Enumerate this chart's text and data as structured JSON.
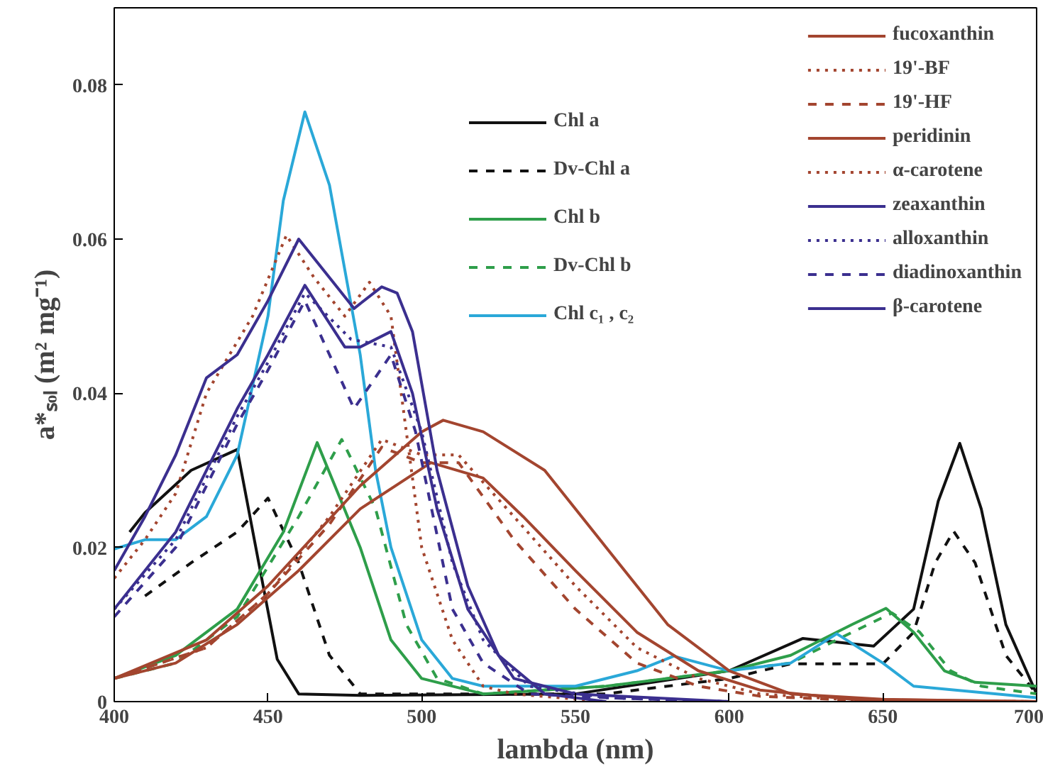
{
  "chart_data": {
    "type": "line",
    "xlabel": "lambda (nm)",
    "ylabel": "a*ₛₒₗ (m² mg⁻¹)",
    "xlim": [
      400,
      700
    ],
    "ylim": [
      0,
      0.09
    ],
    "xticks": [
      400,
      450,
      500,
      550,
      600,
      650,
      700
    ],
    "yticks": [
      0,
      0.02,
      0.04,
      0.06,
      0.08
    ],
    "grid": false,
    "legend": "top right",
    "marker": "none",
    "series": [
      {
        "name": "Chl a",
        "color": "#111111",
        "line_style": "solid",
        "x": [
          405,
          410,
          425,
          440,
          447,
          453,
          460,
          480,
          550,
          600,
          624,
          647,
          660,
          668,
          675,
          682,
          690,
          700
        ],
        "values": [
          0.022,
          0.0245,
          0.03,
          0.0327,
          0.018,
          0.0055,
          0.001,
          0.0008,
          0.001,
          0.004,
          0.0082,
          0.0072,
          0.012,
          0.026,
          0.0335,
          0.025,
          0.01,
          0.001
        ]
      },
      {
        "name": "Dv-Chl a",
        "color": "#111111",
        "line_style": "dashed",
        "x": [
          410,
          425,
          440,
          450,
          460,
          470,
          480,
          560,
          600,
          620,
          650,
          660,
          667,
          673,
          680,
          690,
          700
        ],
        "values": [
          0.0137,
          0.018,
          0.022,
          0.0264,
          0.018,
          0.006,
          0.001,
          0.001,
          0.003,
          0.0049,
          0.0049,
          0.009,
          0.018,
          0.0221,
          0.018,
          0.006,
          0.001
        ]
      },
      {
        "name": "Chl b",
        "color": "#2e9e4a",
        "line_style": "solid",
        "x": [
          400,
          420,
          440,
          455,
          466,
          480,
          490,
          500,
          520,
          560,
          600,
          620,
          640,
          651,
          660,
          670,
          680,
          700
        ],
        "values": [
          0.003,
          0.006,
          0.012,
          0.022,
          0.0336,
          0.02,
          0.008,
          0.003,
          0.001,
          0.002,
          0.004,
          0.006,
          0.01,
          0.0121,
          0.009,
          0.004,
          0.0025,
          0.002
        ]
      },
      {
        "name": "Dv-Chl b",
        "color": "#2e9e4a",
        "line_style": "dashed",
        "x": [
          400,
          420,
          440,
          460,
          474,
          485,
          495,
          505,
          520,
          560,
          600,
          620,
          640,
          653,
          662,
          672,
          682,
          700
        ],
        "values": [
          0.003,
          0.005,
          0.011,
          0.024,
          0.034,
          0.025,
          0.01,
          0.003,
          0.001,
          0.002,
          0.004,
          0.005,
          0.009,
          0.0115,
          0.009,
          0.004,
          0.002,
          0.001
        ]
      },
      {
        "name": "Chl c₁ , c₂",
        "color": "#2aa8d8",
        "line_style": "solid",
        "x": [
          400,
          410,
          420,
          430,
          440,
          450,
          455,
          462,
          470,
          480,
          485,
          490,
          500,
          510,
          520,
          550,
          570,
          582,
          600,
          620,
          635,
          650,
          660,
          700
        ],
        "values": [
          0.0198,
          0.021,
          0.021,
          0.024,
          0.032,
          0.05,
          0.065,
          0.0765,
          0.067,
          0.045,
          0.03,
          0.02,
          0.008,
          0.003,
          0.002,
          0.002,
          0.004,
          0.0059,
          0.004,
          0.005,
          0.0088,
          0.005,
          0.002,
          0.0005
        ]
      },
      {
        "name": "fucoxanthin",
        "color": "#a3452f",
        "line_style": "solid",
        "x": [
          400,
          430,
          450,
          480,
          500,
          507,
          520,
          540,
          560,
          580,
          600,
          620,
          650,
          700
        ],
        "values": [
          0.003,
          0.008,
          0.015,
          0.028,
          0.035,
          0.0365,
          0.035,
          0.03,
          0.02,
          0.01,
          0.004,
          0.001,
          0.0003,
          0
        ]
      },
      {
        "name": "19'-BF",
        "color": "#a3452f",
        "line_style": "dotted",
        "x": [
          400,
          430,
          450,
          470,
          487,
          500,
          512,
          530,
          550,
          570,
          590,
          610,
          640,
          700
        ],
        "values": [
          0.003,
          0.007,
          0.014,
          0.024,
          0.034,
          0.032,
          0.032,
          0.024,
          0.015,
          0.007,
          0.003,
          0.001,
          0.0002,
          0
        ]
      },
      {
        "name": "19'-HF",
        "color": "#a3452f",
        "line_style": "dashed",
        "x": [
          400,
          430,
          450,
          470,
          487,
          500,
          512,
          530,
          550,
          570,
          590,
          610,
          640,
          700
        ],
        "values": [
          0.003,
          0.007,
          0.014,
          0.023,
          0.033,
          0.031,
          0.031,
          0.021,
          0.012,
          0.005,
          0.002,
          0.0007,
          0.0002,
          0
        ]
      },
      {
        "name": "peridinin",
        "color": "#a3452f",
        "line_style": "solid",
        "x": [
          400,
          420,
          440,
          460,
          480,
          503,
          520,
          533,
          550,
          570,
          590,
          610,
          640,
          700
        ],
        "values": [
          0.003,
          0.005,
          0.01,
          0.017,
          0.025,
          0.031,
          0.029,
          0.024,
          0.017,
          0.009,
          0.004,
          0.0015,
          0.0003,
          0
        ]
      },
      {
        "name": "α-carotene",
        "color": "#a3452f",
        "line_style": "dotted",
        "x": [
          400,
          410,
          420,
          430,
          445,
          456,
          465,
          475,
          483,
          490,
          495,
          500,
          510,
          520,
          530,
          560
        ],
        "values": [
          0.016,
          0.021,
          0.027,
          0.04,
          0.05,
          0.0605,
          0.055,
          0.05,
          0.0544,
          0.05,
          0.035,
          0.02,
          0.008,
          0.002,
          0.001,
          0
        ]
      },
      {
        "name": "zeaxanthin",
        "color": "#3b2f8f",
        "line_style": "solid",
        "x": [
          400,
          420,
          440,
          450,
          462,
          475,
          480,
          490,
          497,
          505,
          515,
          530,
          550,
          600
        ],
        "values": [
          0.012,
          0.022,
          0.038,
          0.045,
          0.054,
          0.046,
          0.046,
          0.048,
          0.04,
          0.025,
          0.012,
          0.003,
          0.001,
          0
        ]
      },
      {
        "name": "alloxanthin",
        "color": "#3b2f8f",
        "line_style": "dotted",
        "x": [
          400,
          420,
          440,
          450,
          462,
          477,
          490,
          500,
          510,
          520,
          535,
          560,
          600
        ],
        "values": [
          0.012,
          0.021,
          0.037,
          0.044,
          0.053,
          0.047,
          0.046,
          0.035,
          0.018,
          0.008,
          0.002,
          0.0005,
          0
        ]
      },
      {
        "name": "diadinoxanthin",
        "color": "#3b2f8f",
        "line_style": "dashed",
        "x": [
          400,
          420,
          440,
          450,
          462,
          478,
          490,
          498,
          510,
          520,
          535,
          560,
          600
        ],
        "values": [
          0.011,
          0.02,
          0.036,
          0.043,
          0.052,
          0.038,
          0.045,
          0.035,
          0.012,
          0.005,
          0.001,
          0.0005,
          0
        ]
      },
      {
        "name": "β-carotene",
        "color": "#3b2f8f",
        "line_style": "solid",
        "x": [
          400,
          410,
          420,
          430,
          440,
          450,
          460,
          470,
          478,
          487,
          492,
          497,
          505,
          515,
          525,
          540,
          560
        ],
        "values": [
          0.017,
          0.024,
          0.032,
          0.042,
          0.045,
          0.052,
          0.06,
          0.055,
          0.051,
          0.0538,
          0.053,
          0.048,
          0.03,
          0.015,
          0.006,
          0.001,
          0
        ]
      }
    ]
  }
}
